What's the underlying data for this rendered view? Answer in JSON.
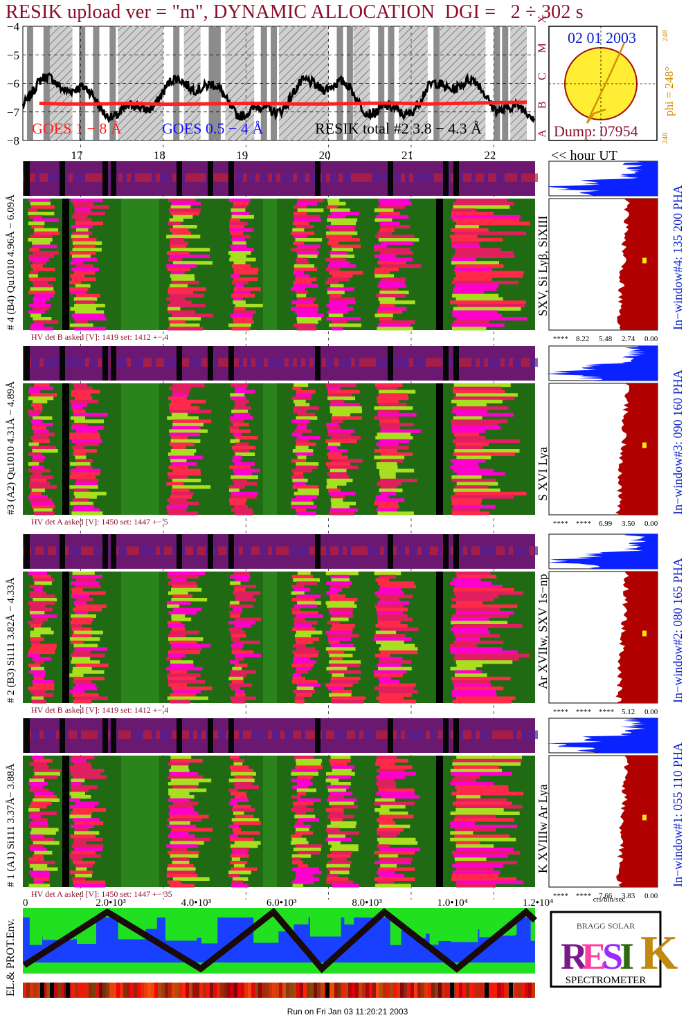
{
  "header": {
    "title": "RESIK upload ver = \"m\", DYNAMIC ALLOCATION  DGI =   2 ÷ 302 s"
  },
  "colors": {
    "title": "#8b0d2a",
    "goes_long": "#ff2020",
    "goes_short": "#1010ff",
    "resik_total": "#000000",
    "phi_label": "#d08a00",
    "pha_histogram_top": "#0a22ff",
    "pha_histogram_main": "#b00000",
    "spectrogram_bg": "#1f6a12",
    "hv_text": "#8b0d2a",
    "date_text": "#0a22cc"
  },
  "goes_panel": {
    "y_ticks": [
      "−4",
      "−5",
      "−6",
      "−7",
      "−8"
    ],
    "class_letters": [
      "A",
      "B",
      "C",
      "M",
      "X"
    ],
    "legend_goes_long": "GOES 1 − 8 Å",
    "legend_goes_short": "GOES 0.5 − 4 Å",
    "legend_resik": "RESIK total #2  3.8 − 4.3 Å",
    "hour_ticks": [
      "17",
      "18",
      "19",
      "20",
      "21",
      "22"
    ],
    "hour_axis_label": "<< hour UT"
  },
  "sun_panel": {
    "date": "02 01 2003",
    "dump": "Dump: 07954",
    "phi_label": "phi = 248°",
    "phi_sup": "248",
    "phi_bottom": "248"
  },
  "channels": [
    {
      "side_label": "# 4 (B4) Qu1010 4.96Å − 6.09Å",
      "line_label": "SXV, Si Lyβ, SiXIII",
      "window_label": "In−window#4:  135 200 PHA",
      "pha_ticks": [
        "****",
        "8.22",
        "5.48",
        "2.74",
        "0.00"
      ],
      "hv_text": "HV det B asked [V]:  1419 set:  1412 +−   4"
    },
    {
      "side_label": "#3 (A2) Qu1010  4.31Å − 4.89Å",
      "line_label": "S XVI Lya",
      "window_label": "In−window#3:  090 160 PHA",
      "pha_ticks": [
        "****",
        "****",
        "6.99",
        "3.50",
        "0.00"
      ],
      "hv_text": "HV det A asked [V]:  1450  set:  1447 +−   5"
    },
    {
      "side_label": "# 2 (B3) Si111  3.82Å − 4.33Å",
      "line_label": "Ar XVIIw,  SXV 1s−np",
      "window_label": "In−window#2:  080 165 PHA",
      "pha_ticks": [
        "****",
        "****",
        "****",
        "5.12",
        "0.00"
      ],
      "hv_text": "HV det B asked [V]:  1419 set:  1412 +−   4"
    },
    {
      "side_label": "# 1 (A1) Si111  3.37Å−  3.88Å",
      "line_label": "K XVIIIw   Ar Lya",
      "window_label": "In−window#1:  055 110 PHA",
      "pha_ticks": [
        "****",
        "****",
        "7.66",
        "3.83",
        "0.00"
      ],
      "hv_text": "HV det A asked [V]:  1450  set:  1447 +− 35"
    }
  ],
  "pha_unit": "cts/bin/sec",
  "env_panel": {
    "label": "EL.& PROT.Env.",
    "x_ticks": [
      "0",
      "2.0•10³",
      "4.0•10³",
      "6.0•10³",
      "8.0•10³",
      "1.0•10⁴",
      "1.2•10⁴"
    ]
  },
  "logo": {
    "title": "SPECTROMETER",
    "letters": "RESIK",
    "tagline": "BRAGG SOLAR"
  },
  "footer": {
    "run_text": "Run on Fri Jan 03 11:20:21 2003"
  },
  "chart_data": {
    "type": "line",
    "title": "RESIK upload ver = \"m\", DYNAMIC ALLOCATION  DGI =   2 ÷ 302 s",
    "xlabel": "<< hour UT",
    "ylabel": "",
    "x": [
      16.5,
      16.8,
      17.2,
      17.6,
      18.0,
      18.4,
      18.8,
      19.2,
      19.6,
      20.0,
      20.4,
      20.8,
      21.2,
      21.6,
      22.0,
      22.4
    ],
    "xlim": [
      16.3,
      22.5
    ],
    "ylim": [
      -8,
      -4
    ],
    "series": [
      {
        "name": "GOES 1 − 8 Å",
        "values": [
          -6.7,
          -6.72,
          -6.72,
          -6.7,
          -6.73,
          -6.72,
          -6.71,
          -6.7,
          -6.72,
          -6.72,
          -6.7,
          -6.69,
          -6.72,
          -6.7,
          -6.68,
          -6.66
        ]
      },
      {
        "name": "RESIK total #2  3.8 − 4.3 Å",
        "values": [
          -6.4,
          -6.8,
          -5.8,
          -6.5,
          -7.2,
          -6.1,
          -6.3,
          -6.2,
          -7.0,
          -6.3,
          -6.9,
          -6.2,
          -7.1,
          -6.4,
          -6.0,
          -6.5
        ]
      }
    ],
    "class_levels": {
      "A": -8,
      "B": -7,
      "C": -6,
      "M": -5,
      "X": -4
    }
  }
}
